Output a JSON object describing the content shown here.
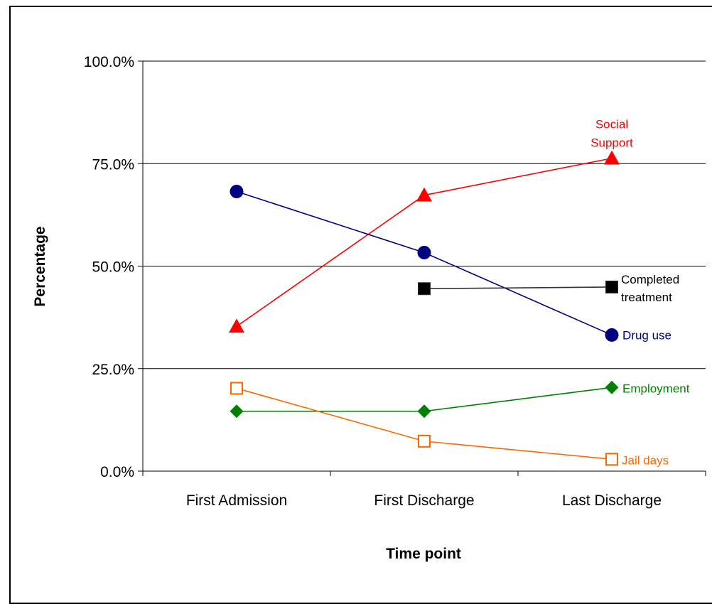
{
  "chart_data": {
    "type": "line",
    "title": "",
    "xlabel": "Time point",
    "ylabel": "Percentage",
    "categories": [
      "First Admission",
      "First Discharge",
      "Last Discharge"
    ],
    "ylim": [
      0,
      100
    ],
    "yticks": [
      0,
      25,
      50,
      75,
      100
    ],
    "ytick_labels": [
      "0.0%",
      "25.0%",
      "50.0%",
      "75.0%",
      "100.0%"
    ],
    "grid": true,
    "legend": "none",
    "series": [
      {
        "name": "Social Support",
        "label_lines": [
          "Social",
          "Support"
        ],
        "color": "#ff0000",
        "marker": "triangle",
        "values": [
          35.3,
          67.3,
          76.3
        ]
      },
      {
        "name": "Drug use",
        "label_lines": [
          "Drug use"
        ],
        "color": "#000080",
        "marker": "circle",
        "values": [
          68.2,
          53.3,
          33.2
        ]
      },
      {
        "name": "Completed treatment",
        "label_lines": [
          "Completed",
          "treatment"
        ],
        "color": "#000000",
        "line_color": "#333333",
        "marker": "square",
        "values": [
          null,
          44.5,
          44.9
        ]
      },
      {
        "name": "Employment",
        "label_lines": [
          "Employment"
        ],
        "color": "#008000",
        "marker": "diamond",
        "values": [
          14.6,
          14.6,
          20.4
        ]
      },
      {
        "name": "Jail days",
        "label_lines": [
          "Jail days"
        ],
        "color": "#ff6600",
        "marker": "square-open",
        "values": [
          20.2,
          7.3,
          2.9
        ]
      }
    ]
  }
}
